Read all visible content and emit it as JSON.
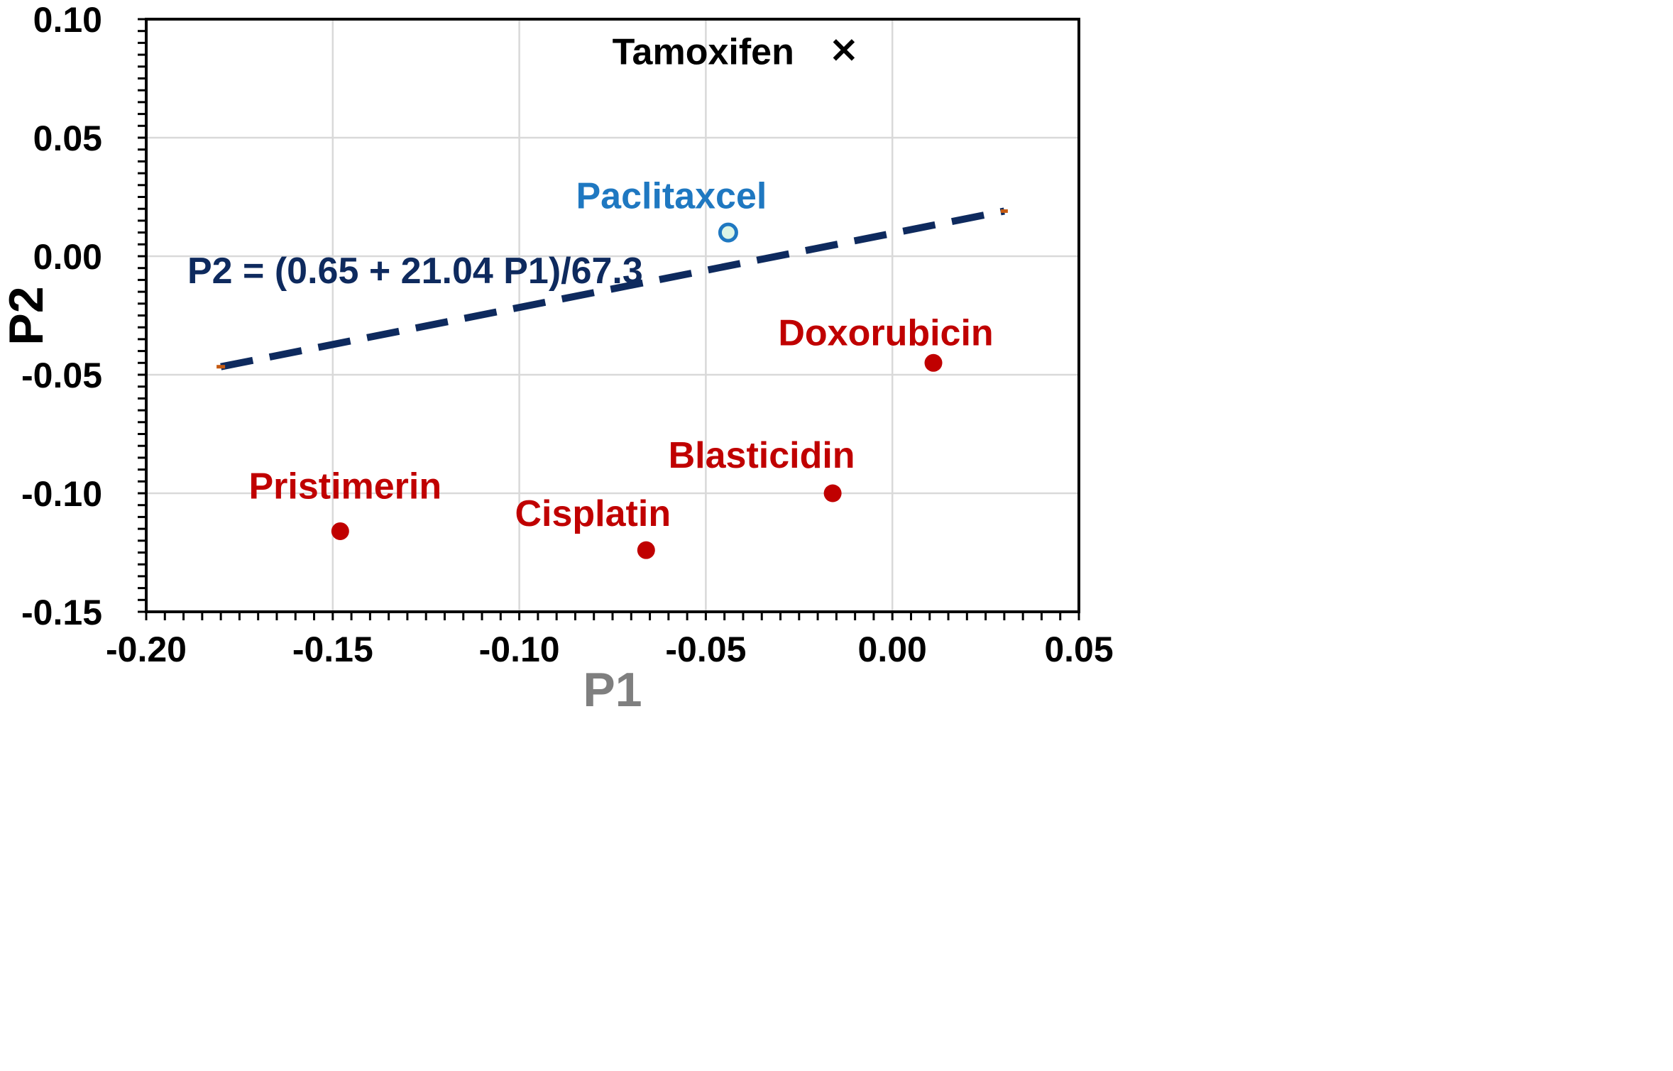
{
  "chart_data": {
    "type": "scatter",
    "title": "",
    "xlabel": "P1",
    "ylabel": "P2",
    "xlim": [
      -0.2,
      0.05
    ],
    "ylim": [
      -0.15,
      0.1
    ],
    "x_ticks": [
      -0.2,
      -0.15,
      -0.1,
      -0.05,
      0.0,
      0.05
    ],
    "y_ticks": [
      -0.15,
      -0.1,
      -0.05,
      0.0,
      0.05,
      0.1
    ],
    "x_tick_labels": [
      "-0.20",
      "-0.15",
      "-0.10",
      "-0.05",
      "0.00",
      "0.05"
    ],
    "y_tick_labels": [
      "-0.15",
      "-0.10",
      "-0.05",
      "0.00",
      "0.05",
      "0.10"
    ],
    "minor_x_step": 0.005,
    "minor_y_step": 0.005,
    "grid": true,
    "points": [
      {
        "name": "Tamoxifen",
        "x": -0.013,
        "y": 0.087,
        "marker": "x",
        "color": "#000000",
        "label_color": "#000000"
      },
      {
        "name": "Paclitaxcel",
        "x": -0.044,
        "y": 0.01,
        "marker": "open-circle",
        "color": "#1f78c1",
        "fill": "#dcf5e6",
        "label_color": "#1f78c1"
      },
      {
        "name": "Doxorubicin",
        "x": 0.011,
        "y": -0.045,
        "marker": "circle",
        "color": "#c00000",
        "label_color": "#c00000"
      },
      {
        "name": "Blasticidin",
        "x": -0.016,
        "y": -0.1,
        "marker": "circle",
        "color": "#c00000",
        "label_color": "#c00000"
      },
      {
        "name": "Cisplatin",
        "x": -0.066,
        "y": -0.124,
        "marker": "circle",
        "color": "#c00000",
        "label_color": "#c00000"
      },
      {
        "name": "Pristimerin",
        "x": -0.148,
        "y": -0.116,
        "marker": "circle",
        "color": "#c00000",
        "label_color": "#c00000"
      }
    ],
    "line": {
      "equation": "P2 = (0.65 + 21.04 P1)/67.3",
      "intercept_term": 0.65,
      "slope_term": 21.04,
      "divisor": 67.3,
      "x_range": [
        -0.18,
        0.03
      ],
      "style": "dashed",
      "color": "#0e2a5e",
      "endpoint_color": "#c55a11"
    },
    "colors": {
      "axis": "#000000",
      "grid": "#d9d9d9",
      "xlabel": "#7f7f7f",
      "ylabel": "#000000"
    }
  }
}
